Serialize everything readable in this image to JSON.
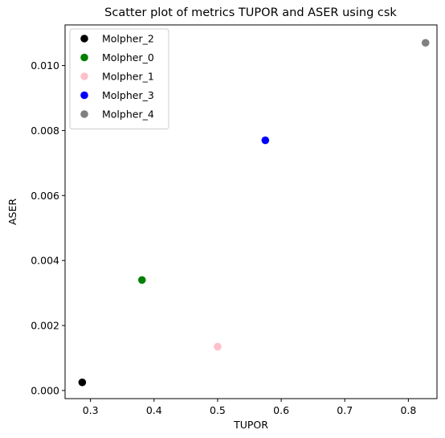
{
  "chart_data": {
    "type": "scatter",
    "title": "Scatter plot of metrics TUPOR and ASER using csk",
    "xlabel": "TUPOR",
    "ylabel": "ASER",
    "xlim": [
      0.26,
      0.845
    ],
    "ylim": [
      -0.00025,
      0.01125
    ],
    "xticks": [
      0.3,
      0.4,
      0.5,
      0.6,
      0.7,
      0.8
    ],
    "xtick_labels": [
      "0.3",
      "0.4",
      "0.5",
      "0.6",
      "0.7",
      "0.8"
    ],
    "yticks": [
      0.0,
      0.002,
      0.004,
      0.006,
      0.008,
      0.01
    ],
    "ytick_labels": [
      "0.000",
      "0.002",
      "0.004",
      "0.006",
      "0.008",
      "0.010"
    ],
    "grid": false,
    "legend_position": "top-left",
    "series": [
      {
        "name": "Molpher_2",
        "color": "#000000",
        "x": [
          0.287
        ],
        "y": [
          0.00025
        ]
      },
      {
        "name": "Molpher_0",
        "color": "#008000",
        "x": [
          0.381
        ],
        "y": [
          0.0034
        ]
      },
      {
        "name": "Molpher_1",
        "color": "#ffc0cb",
        "x": [
          0.5
        ],
        "y": [
          0.00135
        ]
      },
      {
        "name": "Molpher_3",
        "color": "#0000ff",
        "x": [
          0.575
        ],
        "y": [
          0.0077
        ]
      },
      {
        "name": "Molpher_4",
        "color": "#808080",
        "x": [
          0.827
        ],
        "y": [
          0.0107
        ]
      }
    ]
  }
}
